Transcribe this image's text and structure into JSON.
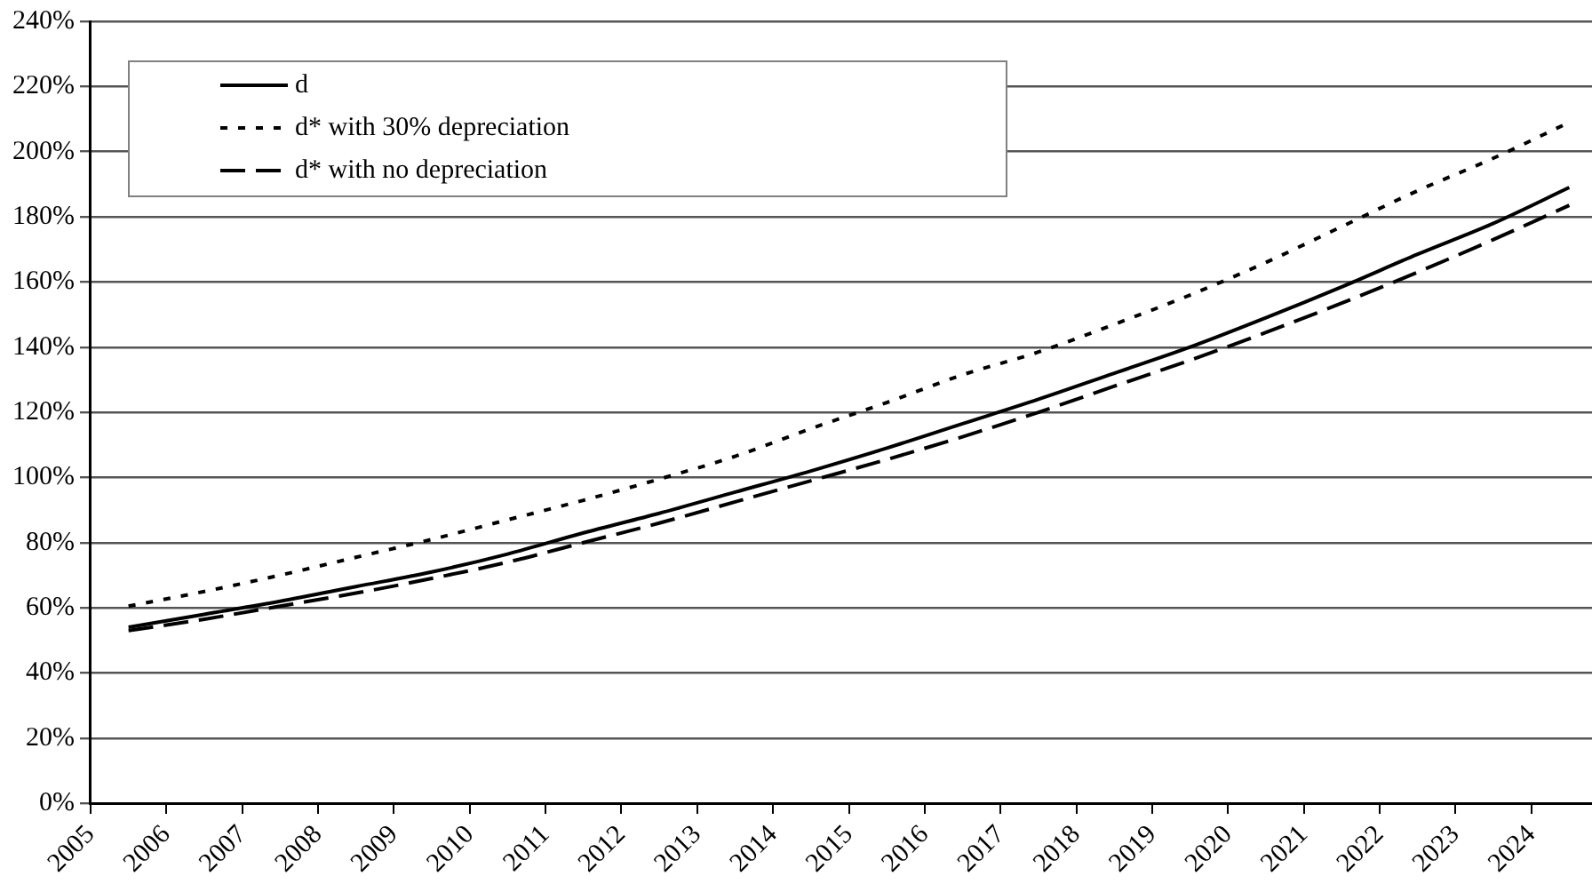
{
  "chart_data": {
    "type": "line",
    "x": [
      2005.5,
      2006.5,
      2007.5,
      2008.5,
      2009.5,
      2010.5,
      2011.5,
      2012.5,
      2013.5,
      2014.5,
      2015.5,
      2016.5,
      2017.5,
      2018.5,
      2019.5,
      2020.5,
      2021.5,
      2022.5,
      2023.5,
      2024.5
    ],
    "xlim": [
      2005,
      2024.8
    ],
    "xticks": [
      2005,
      2006,
      2007,
      2008,
      2009,
      2010,
      2011,
      2012,
      2013,
      2014,
      2015,
      2016,
      2017,
      2018,
      2019,
      2020,
      2021,
      2022,
      2023,
      2024
    ],
    "ylim": [
      0,
      240
    ],
    "yticks": [
      {
        "value": 0,
        "label": "0%"
      },
      {
        "value": 20,
        "label": "20%"
      },
      {
        "value": 40,
        "label": "40%"
      },
      {
        "value": 60,
        "label": "60%"
      },
      {
        "value": 80,
        "label": "80%"
      },
      {
        "value": 100,
        "label": "100%"
      },
      {
        "value": 120,
        "label": "120%"
      },
      {
        "value": 140,
        "label": "140%"
      },
      {
        "value": 160,
        "label": "160%"
      },
      {
        "value": 180,
        "label": "180%"
      },
      {
        "value": 200,
        "label": "200%"
      },
      {
        "value": 220,
        "label": "220%"
      },
      {
        "value": 240,
        "label": "240%"
      }
    ],
    "grid": "y",
    "legend": "top left",
    "marker": "none",
    "series": [
      {
        "name": "d",
        "color": "#000000",
        "line_style": "solid",
        "values": [
          54,
          58,
          62,
          66.5,
          71,
          76.5,
          83,
          89,
          95.5,
          102,
          109,
          116.5,
          124,
          132,
          140,
          149,
          158.5,
          168.5,
          178,
          189
        ]
      },
      {
        "name": "d* with 30% depreciation",
        "color": "#000000",
        "line_style": "dotted",
        "values": [
          60.5,
          65,
          70,
          75.5,
          81,
          87,
          93,
          99.5,
          106.5,
          115,
          123,
          131.5,
          138.5,
          147,
          156,
          166,
          177,
          188,
          198,
          209
        ]
      },
      {
        "name": "d* with no depreciation",
        "color": "#000000",
        "line_style": "dashed",
        "values": [
          53,
          56.5,
          60.5,
          64.5,
          69,
          74,
          80,
          86,
          92.5,
          99,
          105.5,
          112.5,
          120,
          128,
          136,
          144.5,
          153.5,
          163,
          173,
          183.5
        ]
      }
    ]
  }
}
